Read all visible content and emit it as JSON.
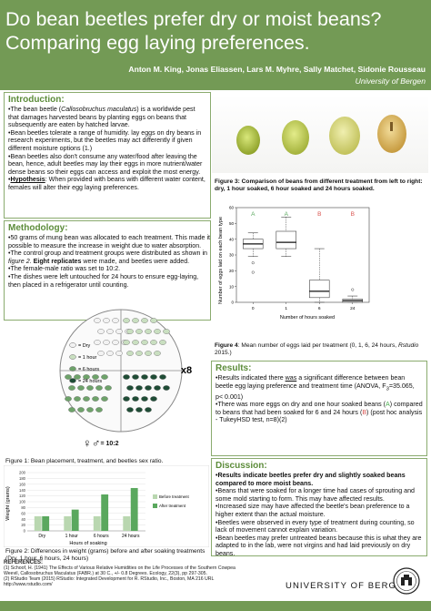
{
  "header": {
    "title_line1": "Do bean beetles prefer dry or moist beans?",
    "title_line2": "Comparing egg laying preferences.",
    "authors": "Anton M. King, Jonas Eliassen, Lars M. Myhre, Sally Matchet, Sidonie Rousseau",
    "affiliation": "University of Bergen"
  },
  "intro": {
    "title": "Introduction:",
    "p1_pre": "The bean beetle (",
    "p1_ital": "Callosobruchus maculatus",
    "p1_post": ") is a worldwide pest that damages harvested beans by planting eggs on beans that subsequently are eaten by hatched larvae.",
    "p2": "Bean beetles tolerate a range of humidity. lay eggs on dry beans in research experiments, but the beetles may act differently if given different moisture options (1.)",
    "p3": "Bean beetles also don't consume any water/food after leaving the bean, hence, adult beetles may lay their eggs in more nutrient/water dense beans so their eggs can access and exploit the most energy.",
    "hyp_label": "Hypothesis",
    "hyp_text": ": When provided with beans with different water content, females will alter their egg laying preferences."
  },
  "methods": {
    "title": "Methodology:",
    "p1": "50 grams of mung bean was allocated to each treatment. This made it possible to measure the increase in weight due to water absorption.",
    "p2_pre": "The control group and treatment groups were distributed as shown in ",
    "p2_ital": "figure 2",
    "p2_mid": ". ",
    "p2_bold": "Eight replicates",
    "p2_post": " were made, and beetles were added.",
    "p3": "The female-male ratio was set to 10:2.",
    "p4": "The dishes were left untouched for 24 hours to ensure egg-laying, then placed in a refrigerator until counting."
  },
  "dish": {
    "legend": [
      "= Dry",
      "= 1 hour",
      "= 6 hours",
      "= 24 hours"
    ],
    "replicates": "x8",
    "ratio": "= 10:2",
    "female_symbol": "♀",
    "male_symbol": "♂",
    "colors": {
      "dry": "#f2f2f2",
      "1h": "#c9dfc0",
      "6h": "#6ea36a",
      "24h": "#1f4d36"
    }
  },
  "fig1_caption": "Figure 1: Bean placement, treatment, and beetles sex ratio.",
  "fig2_caption": "Figure 2: Differences in weight (grams) before and after soaking treatments (Dry, 1 hour, 6 hours, 24 hours)",
  "fig3_caption": "Figure 3: Comparison of beans from different treatment from left to right: dry, 1 hour soaked, 6 hour soaked and 24 hours soaked.",
  "fig4_caption_pre": "Figure 4",
  "fig4_caption_mid": ": Mean number of eggs laid per treatment (0, 1, 6, 24 hours, ",
  "fig4_caption_ital": "Rstudio",
  "fig4_caption_post": " 2015.)",
  "results": {
    "title": "Results:",
    "p1_a": "Results indicated there ",
    "p1_was": "was",
    "p1_b": " a significant difference between bean beetle egg laying preference and treatment time (ANOVA, F",
    "p1_sub": "3",
    "p1_c": "=35.065, p< 0.001)",
    "p2_a": "There was more eggs on dry and one hour soaked beans (",
    "p2_A": "A",
    "p2_b": ") compared to beans that had been soaked for 6 and 24 hours (",
    "p2_B": "B",
    "p2_c": ") (post hoc analysis - TukeyHSD test, n=8)(2)"
  },
  "discussion": {
    "title": "Discussion:",
    "p1": "Results indicate beetles prefer dry and slightly soaked beans compared to more moist beans.",
    "p2": "Beans that were soaked for a longer time had cases of sprouting and some mold starting to form. This may have affected results.",
    "p3": "Increased size may have affected the beetle's bean preference to a higher extent than the actual moisture.",
    "p4": "Beetles were observed in every type of treatment during counting, so lack of movement cannot explain variation.",
    "p5": "Bean beetles may prefer untreated beans because this is what they are adapted to in the lab, were not virgins and had laid previously on dry beans."
  },
  "references": {
    "title": "REFERENCES:",
    "r1": "(1)    Schoof, H. (1941) The Effects of Various Relative Humidities on the Life Processes of the Southern Cowpea",
    "r1b": "         Weevil, Callosobruchus Maculatus (FABR.) at 30 C., +/- 0.8 Degrees. Ecology, 22(3), pp 297-305.",
    "r2": "(2)    RStudio Team (2015) RStudio: Integrated Development for R. RStudio, Inc., Boston, MA 216 URL",
    "r2b": "         http://www.rstudio.com/"
  },
  "footer": {
    "university": "UNIVERSITY OF BERGEN"
  },
  "chart_data": [
    {
      "type": "bar",
      "title": "",
      "xlabel": "Hours of soaking",
      "ylabel": "Weight (grams)",
      "ylim": [
        0,
        200
      ],
      "yticks": [
        0,
        20,
        40,
        60,
        80,
        100,
        120,
        140,
        160,
        180,
        200
      ],
      "categories": [
        "Dry",
        "1 hour",
        "6 hours",
        "24 hours"
      ],
      "series": [
        {
          "name": "Before treatment",
          "values": [
            50,
            50,
            50,
            50
          ],
          "color": "#b9d7b0"
        },
        {
          "name": "After treatment",
          "values": [
            50,
            73,
            125,
            147
          ],
          "color": "#5aa85e"
        }
      ],
      "legend": "right"
    },
    {
      "type": "box",
      "title": "",
      "xlabel": "Number of hours soaked",
      "ylabel": "Number of eggs laid on each bean type",
      "ylim": [
        0,
        60
      ],
      "yticks": [
        0,
        10,
        20,
        30,
        40,
        50,
        60
      ],
      "categories": [
        "0",
        "1",
        "6",
        "24"
      ],
      "group_letters": [
        "A",
        "A",
        "B",
        "B"
      ],
      "letter_colors": [
        "#5aa85e",
        "#5aa85e",
        "#d9534f",
        "#d9534f"
      ],
      "boxes": [
        {
          "min": 29,
          "q1": 34,
          "median": 37,
          "q3": 40,
          "max": 44,
          "outliers": [
            19,
            25
          ]
        },
        {
          "min": 29,
          "q1": 34,
          "median": 38,
          "q3": 45,
          "max": 54,
          "outliers": []
        },
        {
          "min": 0,
          "q1": 3,
          "median": 7,
          "q3": 14,
          "max": 34,
          "outliers": []
        },
        {
          "min": 0,
          "q1": 0,
          "median": 1,
          "q3": 2,
          "max": 4,
          "outliers": [
            8
          ]
        }
      ]
    }
  ]
}
